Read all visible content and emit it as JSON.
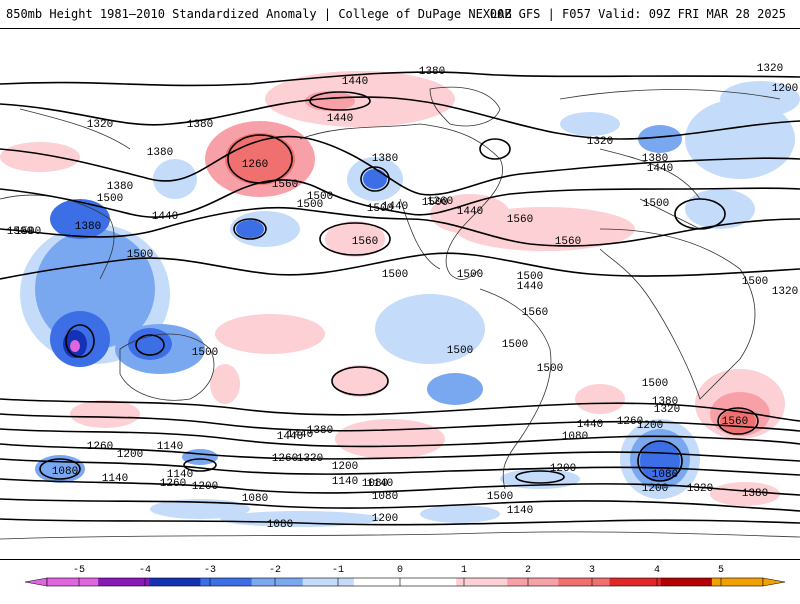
{
  "header": {
    "title": "850mb Height 1981–2010 Standardized Anomaly | College of DuPage NEXLAB",
    "run_info": "00Z GFS | F057 Valid: 09Z FRI MAR 28 2025"
  },
  "contour_labels": [
    "1380",
    "1440",
    "1320",
    "1200",
    "1380",
    "1440",
    "1380",
    "1320",
    "1260",
    "1380",
    "1440",
    "1560",
    "1500",
    "1380",
    "1500",
    "1440",
    "1500",
    "1500",
    "1440",
    "1560",
    "1500",
    "1380",
    "1500",
    "1500",
    "1560",
    "1560",
    "1500",
    "1500",
    "1500",
    "1500",
    "1560",
    "1500",
    "1500",
    "1500",
    "1440",
    "1260",
    "1200",
    "1440",
    "1380",
    "1320",
    "1260",
    "1200",
    "1140",
    "1140",
    "1260",
    "1200",
    "1140",
    "1080",
    "1080",
    "1140",
    "1080",
    "1200",
    "1500",
    "1380",
    "1320",
    "1200",
    "1080",
    "1200",
    "1260",
    "1320",
    "1380",
    "1560",
    "1500",
    "1440",
    "1380",
    "1320",
    "1140",
    "1080",
    "1200",
    "1140",
    "1500",
    "1500",
    "1440",
    "1500",
    "1320",
    "1260",
    "1080",
    "1080",
    "1440"
  ],
  "colorbar": {
    "ticks": [
      "-5",
      "-4",
      "-3",
      "-2",
      "-1",
      "0",
      "1",
      "2",
      "3",
      "4",
      "5"
    ],
    "colors": {
      "minus5": "#e066e0",
      "minus4": "#8a1ab8",
      "minus3": "#1432b4",
      "minus2": "#3c6ee6",
      "minus1p5": "#7aa8f0",
      "minus1": "#c4dcfa",
      "zero": "#ffffff",
      "plus1": "#fcd0d4",
      "plus1p5": "#f8a0a8",
      "plus2": "#f07070",
      "plus3": "#e02828",
      "plus4": "#b40000",
      "plus5": "#f0a000"
    }
  }
}
